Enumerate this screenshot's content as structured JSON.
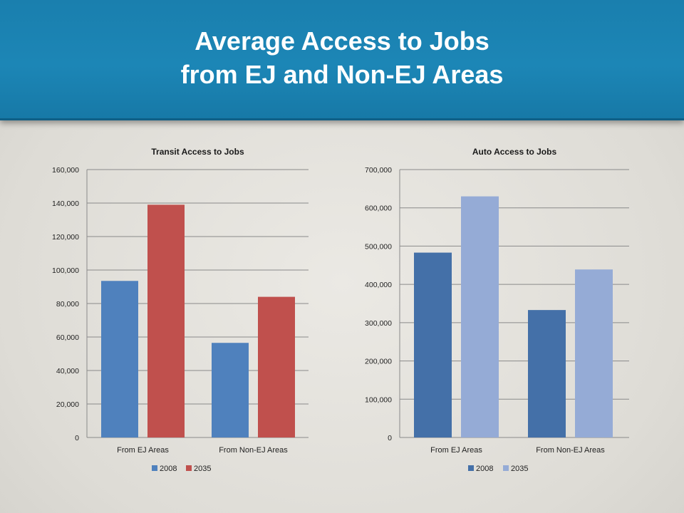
{
  "slide": {
    "title_line1": "Average Access to Jobs",
    "title_line2": "from EJ and Non-EJ Areas"
  },
  "chart_data": [
    {
      "type": "bar",
      "title": "Transit Access to Jobs",
      "categories": [
        "From EJ Areas",
        "From Non-EJ Areas"
      ],
      "series": [
        {
          "name": "2008",
          "values": [
            93500,
            56500
          ],
          "color": "#4f81bd"
        },
        {
          "name": "2035",
          "values": [
            139000,
            84000
          ],
          "color": "#c0504d"
        }
      ],
      "ylim": [
        0,
        160000
      ],
      "yticks": [
        0,
        20000,
        40000,
        60000,
        80000,
        100000,
        120000,
        140000,
        160000
      ],
      "ytick_labels": [
        "0",
        "20,000",
        "40,000",
        "60,000",
        "80,000",
        "100,000",
        "120,000",
        "140,000",
        "160,000"
      ],
      "grid": true,
      "legend": "bottom"
    },
    {
      "type": "bar",
      "title": "Auto Access to Jobs",
      "categories": [
        "From EJ Areas",
        "From Non-EJ Areas"
      ],
      "series": [
        {
          "name": "2008",
          "values": [
            483000,
            333000
          ],
          "color": "#4470a8"
        },
        {
          "name": "2035",
          "values": [
            630000,
            439000
          ],
          "color": "#95abd6"
        }
      ],
      "ylim": [
        0,
        700000
      ],
      "yticks": [
        0,
        100000,
        200000,
        300000,
        400000,
        500000,
        600000,
        700000
      ],
      "ytick_labels": [
        "0",
        "100,000",
        "200,000",
        "300,000",
        "400,000",
        "500,000",
        "600,000",
        "700,000"
      ],
      "grid": true,
      "legend": "bottom"
    }
  ]
}
